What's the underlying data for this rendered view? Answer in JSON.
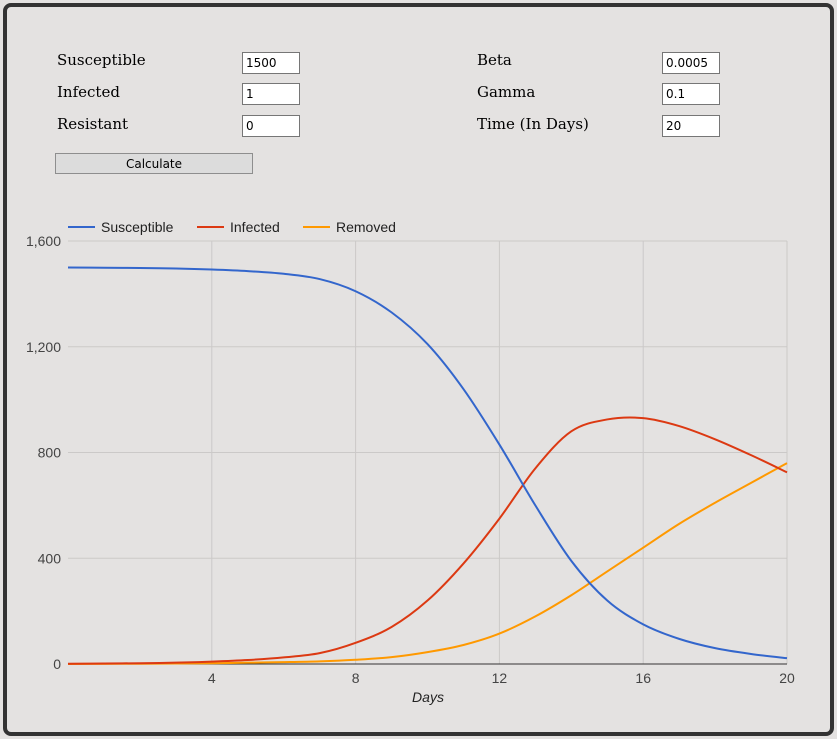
{
  "form": {
    "susceptible": {
      "label": "Susceptible",
      "value": "1500"
    },
    "infected": {
      "label": "Infected",
      "value": "1"
    },
    "resistant": {
      "label": "Resistant",
      "value": "0"
    },
    "beta": {
      "label": "Beta",
      "value": "0.0005"
    },
    "gamma": {
      "label": "Gamma",
      "value": "0.1"
    },
    "time": {
      "label": "Time (In Days)",
      "value": "20"
    },
    "calculate_label": "Calculate"
  },
  "chart_data": {
    "type": "line",
    "xlabel": "Days",
    "ylabel": "",
    "xlim": [
      0,
      20
    ],
    "ylim": [
      0,
      1600
    ],
    "x_ticks": [
      "4",
      "8",
      "12",
      "16",
      "20"
    ],
    "x_tick_values": [
      4,
      8,
      12,
      16,
      20
    ],
    "y_ticks": [
      "0",
      "400",
      "800",
      "1,200",
      "1,600"
    ],
    "y_tick_values": [
      0,
      400,
      800,
      1200,
      1600
    ],
    "grid": true,
    "legend_position": "top",
    "x": [
      0,
      1,
      2,
      3,
      4,
      5,
      6,
      7,
      8,
      9,
      10,
      11,
      12,
      13,
      14,
      15,
      16,
      17,
      18,
      19,
      20
    ],
    "series": [
      {
        "name": "Susceptible",
        "color": "#3366cc",
        "values": [
          1500,
          1499,
          1498,
          1496,
          1492,
          1486,
          1476,
          1456,
          1410,
          1330,
          1210,
          1040,
          830,
          600,
          390,
          240,
          150,
          95,
          60,
          38,
          22
        ]
      },
      {
        "name": "Infected",
        "color": "#dc3912",
        "values": [
          1,
          2,
          3,
          5,
          9,
          15,
          25,
          41,
          80,
          140,
          240,
          380,
          550,
          740,
          880,
          925,
          930,
          900,
          850,
          790,
          725
        ]
      },
      {
        "name": "Removed",
        "color": "#ff9900",
        "values": [
          0,
          0.5,
          1,
          2,
          3,
          5,
          7,
          10,
          16,
          26,
          45,
          72,
          115,
          180,
          260,
          350,
          440,
          530,
          610,
          685,
          760
        ]
      }
    ]
  }
}
